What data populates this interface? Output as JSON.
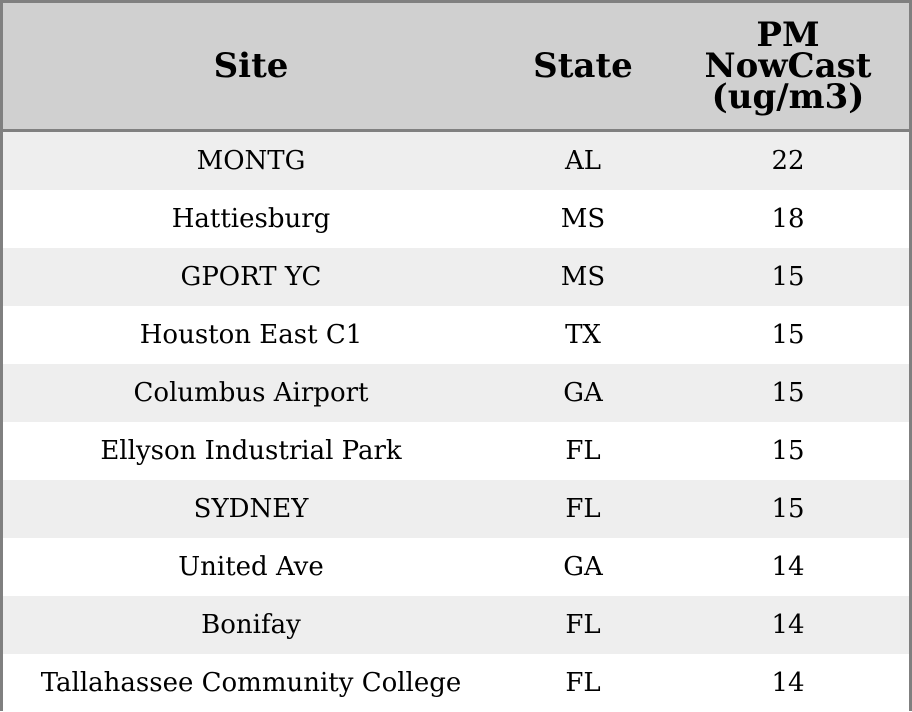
{
  "chart_data": {
    "type": "table",
    "columns": [
      "Site",
      "State",
      "PM NowCast (ug/m3)"
    ],
    "header": {
      "site": "Site",
      "state": "State",
      "pm_line1": "PM",
      "pm_line2": "NowCast",
      "pm_line3": "(ug/m3)"
    },
    "rows": [
      {
        "site": "MONTG",
        "state": "AL",
        "pm": 22
      },
      {
        "site": "Hattiesburg",
        "state": "MS",
        "pm": 18
      },
      {
        "site": "GPORT YC",
        "state": "MS",
        "pm": 15
      },
      {
        "site": "Houston East C1",
        "state": "TX",
        "pm": 15
      },
      {
        "site": "Columbus Airport",
        "state": "GA",
        "pm": 15
      },
      {
        "site": "Ellyson Industrial Park",
        "state": "FL",
        "pm": 15
      },
      {
        "site": "SYDNEY",
        "state": "FL",
        "pm": 15
      },
      {
        "site": "United Ave",
        "state": "GA",
        "pm": 14
      },
      {
        "site": "Bonifay",
        "state": "FL",
        "pm": 14
      },
      {
        "site": "Tallahassee Community College",
        "state": "FL",
        "pm": 14
      }
    ]
  },
  "colors": {
    "header_bg": "#d0d0d0",
    "row_alt_bg": "#eeeeee",
    "row_bg": "#ffffff",
    "border": "#808080"
  }
}
